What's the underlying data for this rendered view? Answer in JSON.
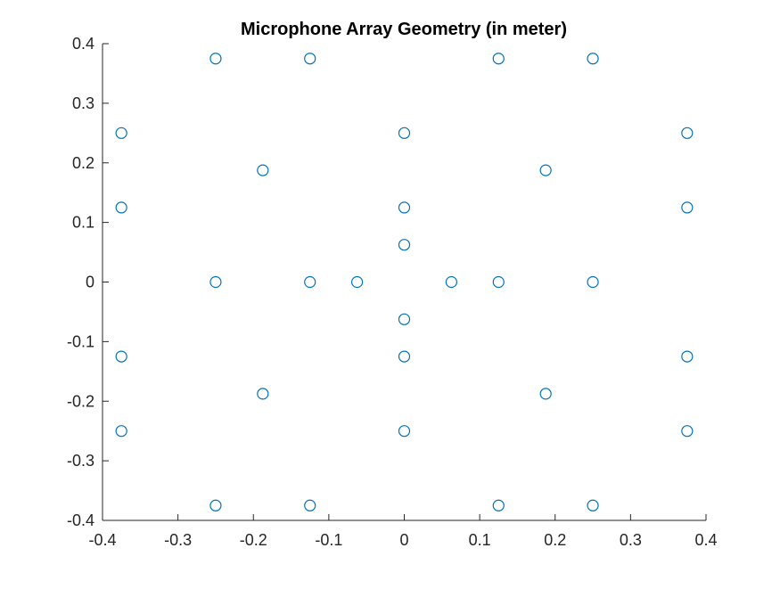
{
  "chart_data": {
    "type": "scatter",
    "title": "Microphone Array Geometry (in meter)",
    "xlabel": "",
    "ylabel": "",
    "xlim": [
      -0.4,
      0.4
    ],
    "ylim": [
      -0.4,
      0.4
    ],
    "xticks": [
      -0.4,
      -0.3,
      -0.2,
      -0.1,
      0,
      0.1,
      0.2,
      0.3,
      0.4
    ],
    "xtick_labels": [
      "-0.4",
      "-0.3",
      "-0.2",
      "-0.1",
      "0",
      "0.1",
      "0.2",
      "0.3",
      "0.4"
    ],
    "yticks": [
      -0.4,
      -0.3,
      -0.2,
      -0.1,
      0,
      0.1,
      0.2,
      0.3,
      0.4
    ],
    "ytick_labels": [
      "-0.4",
      "-0.3",
      "-0.2",
      "-0.1",
      "0",
      "0.1",
      "0.2",
      "0.3",
      "0.4"
    ],
    "grid": false,
    "marker": "open-circle",
    "marker_color": "#0072BD",
    "series": [
      {
        "x": [
          -0.25,
          -0.125,
          0.125,
          0.25,
          -0.375,
          0,
          0.375,
          -0.1875,
          0.1875,
          -0.375,
          0,
          0.375,
          0,
          -0.25,
          -0.125,
          -0.0625,
          0.0625,
          0.125,
          0.25,
          0,
          -0.375,
          0,
          0.375,
          -0.1875,
          0.1875,
          -0.375,
          0,
          0.375,
          -0.25,
          -0.125,
          0.125,
          0.25
        ],
        "y": [
          0.375,
          0.375,
          0.375,
          0.375,
          0.25,
          0.25,
          0.25,
          0.1875,
          0.1875,
          0.125,
          0.125,
          0.125,
          0.0625,
          0,
          0,
          0,
          0,
          0,
          0,
          -0.0625,
          -0.125,
          -0.125,
          -0.125,
          -0.1875,
          -0.1875,
          -0.25,
          -0.25,
          -0.25,
          -0.375,
          -0.375,
          -0.375,
          -0.375
        ]
      }
    ]
  }
}
